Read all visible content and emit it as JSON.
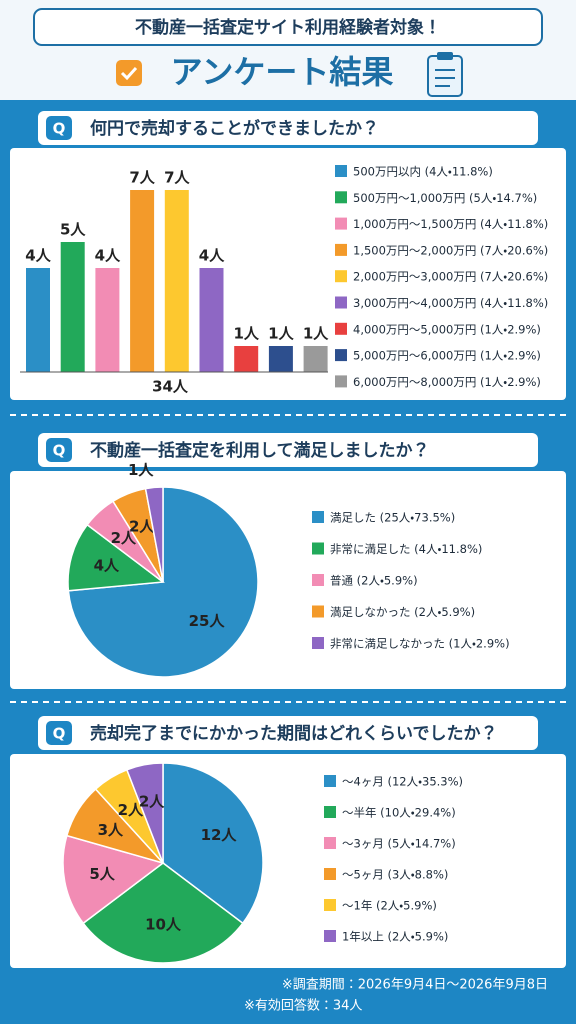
{
  "header": {
    "subtitle": "不動産一括査定サイト利用経験者対象！",
    "title": "アンケート結果"
  },
  "question_label": "Q",
  "chart_data": [
    {
      "type": "bar",
      "title": "何円で売却することができましたか？",
      "categories": [
        "500万円以内 (4人・11.8%)",
        "500万円〜1,000万円 (5人・14.7%)",
        "1,000万円〜1,500万円 (4人・11.8%)",
        "1,500万円〜2,000万円 (7人・20.6%)",
        "2,000万円〜3,000万円 (7人・20.6%)",
        "3,000万円〜4,000万円 (4人・11.8%)",
        "4,000万円〜5,000万円 (1人・2.9%)",
        "5,000万円〜6,000万円 (1人・2.9%)",
        "6,000万円〜8,000万円 (1人・2.9%)"
      ],
      "values": [
        4,
        5,
        4,
        7,
        7,
        4,
        1,
        1,
        1
      ],
      "value_labels": [
        "4人",
        "5人",
        "4人",
        "7人",
        "7人",
        "4人",
        "1人",
        "1人",
        "1人"
      ],
      "colors": [
        "#2b8fc6",
        "#22a95a",
        "#f28cb4",
        "#f39a2a",
        "#fdc82f",
        "#8e67c4",
        "#e8403f",
        "#2d4f8e",
        "#9a9a9a"
      ],
      "ylim": [
        0,
        7
      ],
      "total_label": "34人"
    },
    {
      "type": "pie",
      "title": "不動産一括査定を利用して満足しましたか？",
      "categories": [
        "満足した (25人・73.5%)",
        "非常に満足した (4人・11.8%)",
        "普通 (2人・5.9%)",
        "満足しなかった (2人・5.9%)",
        "非常に満足しなかった (1人・2.9%)"
      ],
      "values": [
        25,
        4,
        2,
        2,
        1
      ],
      "value_labels": [
        "25人",
        "4人",
        "2人",
        "2人",
        "1人"
      ],
      "colors": [
        "#2b8fc6",
        "#22a95a",
        "#f28cb4",
        "#f39a2a",
        "#8e67c4"
      ]
    },
    {
      "type": "pie",
      "title": "売却完了までにかかった期間はどれくらいでしたか？",
      "categories": [
        "〜4ヶ月 (12人・35.3%)",
        "〜半年 (10人・29.4%)",
        "〜3ヶ月 (5人・14.7%)",
        "〜5ヶ月 (3人・8.8%)",
        "〜1年 (2人・5.9%)",
        "1年以上 (2人・5.9%)"
      ],
      "values": [
        12,
        10,
        5,
        3,
        2,
        2
      ],
      "value_labels": [
        "12人",
        "10人",
        "5人",
        "3人",
        "2人",
        "2人"
      ],
      "colors": [
        "#2b8fc6",
        "#22a95a",
        "#f28cb4",
        "#f39a2a",
        "#fdc82f",
        "#8e67c4"
      ]
    }
  ],
  "footer": {
    "period": "※調査期間：2026年9月4日〜2026年9月8日",
    "respondents": "※有効回答数：34人"
  }
}
